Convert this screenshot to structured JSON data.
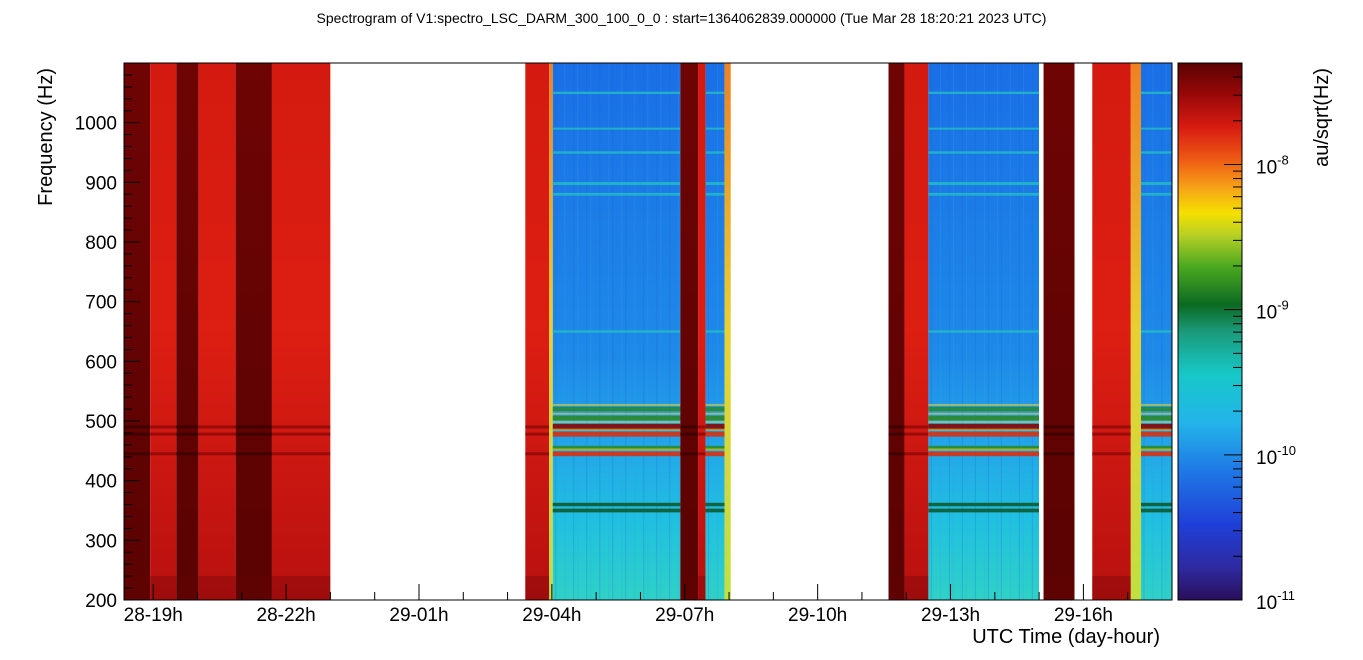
{
  "chart_data": {
    "type": "heatmap",
    "title": "Spectrogram of V1:spectro_LSC_DARM_300_100_0_0 : start=1364062839.000000 (Tue Mar 28 18:20:21 2023 UTC)",
    "xlabel": "UTC Time (day-hour)",
    "ylabel": "Frequency (Hz)",
    "colorbar_label": "au/sqrt(Hz)",
    "x_unit": "hours since 28-18h",
    "xlim": [
      0.34,
      24.0
    ],
    "ylim": [
      200,
      1100
    ],
    "x_ticks": [
      {
        "label": "28-19h",
        "value": 1
      },
      {
        "label": "28-22h",
        "value": 4
      },
      {
        "label": "29-01h",
        "value": 7
      },
      {
        "label": "29-04h",
        "value": 10
      },
      {
        "label": "29-07h",
        "value": 13
      },
      {
        "label": "29-10h",
        "value": 16
      },
      {
        "label": "29-13h",
        "value": 19
      },
      {
        "label": "29-16h",
        "value": 22
      }
    ],
    "y_ticks": [
      200,
      300,
      400,
      500,
      600,
      700,
      800,
      900,
      1000
    ],
    "colorbar": {
      "scale": "log",
      "range": [
        1e-11,
        5e-08
      ],
      "ticks": [
        {
          "base": "10",
          "exp": "-11",
          "value": 1e-11
        },
        {
          "base": "10",
          "exp": "-10",
          "value": 1e-10
        },
        {
          "base": "10",
          "exp": "-9",
          "value": 1e-09
        },
        {
          "base": "10",
          "exp": "-8",
          "value": 1e-08
        }
      ]
    },
    "segments": [
      {
        "start": 0.34,
        "end": 0.93,
        "state": "very-high"
      },
      {
        "start": 0.93,
        "end": 1.52,
        "state": "high"
      },
      {
        "start": 1.52,
        "end": 2.02,
        "state": "very-high"
      },
      {
        "start": 2.02,
        "end": 2.86,
        "state": "high"
      },
      {
        "start": 2.86,
        "end": 3.68,
        "state": "very-high"
      },
      {
        "start": 3.68,
        "end": 5.0,
        "state": "high"
      },
      {
        "start": 5.0,
        "end": 9.4,
        "state": "no-data"
      },
      {
        "start": 9.4,
        "end": 9.94,
        "state": "high"
      },
      {
        "start": 9.94,
        "end": 10.02,
        "state": "transition"
      },
      {
        "start": 10.02,
        "end": 12.9,
        "state": "low-noise"
      },
      {
        "start": 12.9,
        "end": 13.3,
        "state": "very-high"
      },
      {
        "start": 13.3,
        "end": 13.47,
        "state": "high"
      },
      {
        "start": 13.47,
        "end": 13.9,
        "state": "low-noise"
      },
      {
        "start": 13.9,
        "end": 14.04,
        "state": "transition"
      },
      {
        "start": 14.04,
        "end": 17.6,
        "state": "no-data"
      },
      {
        "start": 17.6,
        "end": 17.96,
        "state": "very-high"
      },
      {
        "start": 17.96,
        "end": 18.5,
        "state": "high"
      },
      {
        "start": 18.5,
        "end": 21.0,
        "state": "low-noise"
      },
      {
        "start": 21.0,
        "end": 21.1,
        "state": "no-data"
      },
      {
        "start": 21.1,
        "end": 21.8,
        "state": "very-high"
      },
      {
        "start": 21.8,
        "end": 22.2,
        "state": "no-data"
      },
      {
        "start": 22.2,
        "end": 23.07,
        "state": "high"
      },
      {
        "start": 23.07,
        "end": 23.3,
        "state": "transition"
      },
      {
        "start": 23.3,
        "end": 24.0,
        "state": "low-noise"
      }
    ],
    "spectral_lines_hz": [
      {
        "freq": 1050,
        "strength": 0.15
      },
      {
        "freq": 990,
        "strength": 0.1
      },
      {
        "freq": 950,
        "strength": 0.18
      },
      {
        "freq": 898,
        "strength": 0.3
      },
      {
        "freq": 880,
        "strength": 0.25
      },
      {
        "freq": 650,
        "strength": 0.18
      },
      {
        "freq": 520,
        "strength": 0.55
      },
      {
        "freq": 505,
        "strength": 0.6
      },
      {
        "freq": 490,
        "strength": 0.9
      },
      {
        "freq": 478,
        "strength": 0.7
      },
      {
        "freq": 455,
        "strength": 0.5
      },
      {
        "freq": 445,
        "strength": 0.65
      },
      {
        "freq": 360,
        "strength": 0.4
      },
      {
        "freq": 350,
        "strength": 0.45
      }
    ]
  }
}
